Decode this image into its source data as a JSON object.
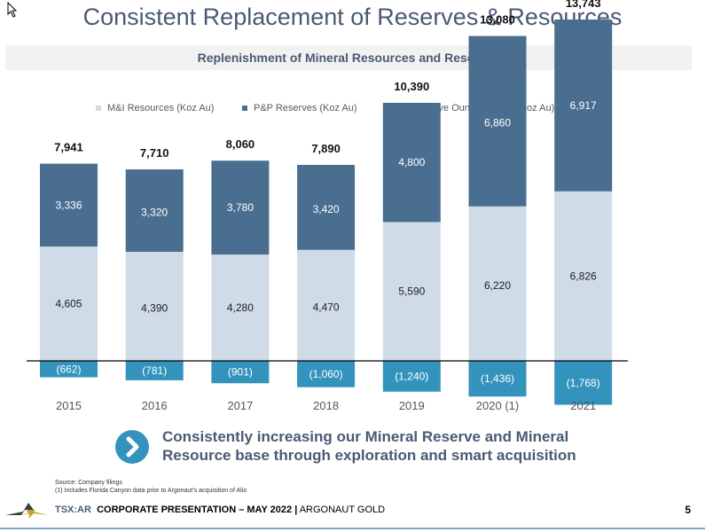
{
  "title": "Consistent Replacement of Reserves & Resources",
  "subtitle": "Replenishment of Mineral Resources and Reserves",
  "colors": {
    "mi": "#cfdbe7",
    "pp": "#4a6e90",
    "mined": "#3493bc",
    "title": "#4a5a73"
  },
  "chart_data": {
    "type": "bar",
    "stacked": true,
    "title": "Replenishment of Mineral Resources and Reserves",
    "xlabel": "",
    "ylabel": "",
    "categories": [
      "2015",
      "2016",
      "2017",
      "2018",
      "2019",
      "2020 (1)",
      "2021"
    ],
    "series": [
      {
        "name": "M&I Resources (Koz Au)",
        "values": [
          4605,
          4390,
          4280,
          4470,
          5590,
          6220,
          6826
        ],
        "labels": [
          "4,605",
          "4,390",
          "4,280",
          "4,470",
          "5,590",
          "6,220",
          "6,826"
        ]
      },
      {
        "name": "P&P Reserves (Koz Au)",
        "values": [
          3336,
          3320,
          3780,
          3420,
          4800,
          6860,
          6917
        ],
        "labels": [
          "3,336",
          "3,320",
          "3,780",
          "3,420",
          "4,800",
          "6,860",
          "6,917"
        ]
      },
      {
        "name": "Cumulative Ounces Mined (Koz Au)",
        "values": [
          -662,
          -781,
          -901,
          -1060,
          -1240,
          -1436,
          -1768
        ],
        "labels": [
          "(662)",
          "(781)",
          "(901)",
          "(1,060)",
          "(1,240)",
          "(1,436)",
          "(1,768)"
        ]
      }
    ],
    "totals": [
      7941,
      7710,
      8060,
      7890,
      10390,
      13080,
      13743
    ],
    "total_labels": [
      "7,941",
      "7,710",
      "8,060",
      "7,890",
      "10,390",
      "13,080",
      "13,743"
    ],
    "legend_position": "top",
    "grid": false,
    "ylim": [
      -2000,
      14500
    ]
  },
  "callout": {
    "line1": "Consistently increasing our Mineral Reserve and Mineral",
    "line2": "Resource base through exploration and smart acquisition"
  },
  "source": {
    "line1": "Source: Company filings",
    "line2": "(1) Includes Florida Canyon data prior to Argonaut's acquisition of Alio"
  },
  "footer": {
    "ticker": "TSX:AR",
    "presentation": "CORPORATE PRESENTATION – MAY 2022 |",
    "company": "ARGONAUT GOLD",
    "page": "5"
  }
}
